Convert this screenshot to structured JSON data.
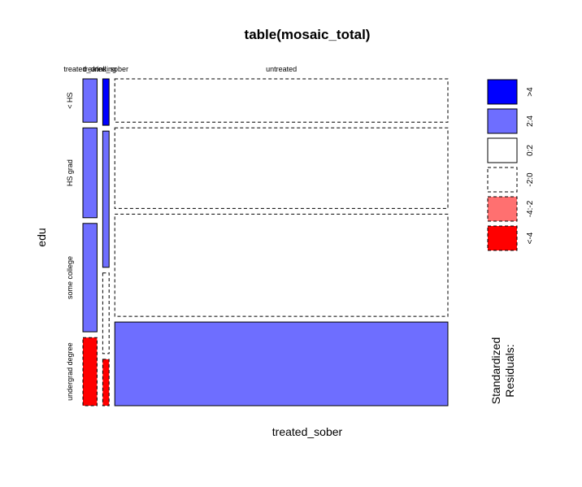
{
  "chart_data": {
    "type": "mosaic",
    "title": "table(mosaic_total)",
    "xlabel": "treated_sober",
    "ylabel": "edu",
    "columns": [
      "treated_drinking",
      "treated_sober",
      "untreated"
    ],
    "columns_display": [
      "treated_drinking",
      "treated_sober",
      "untreated"
    ],
    "column_fractions": [
      0.04,
      0.018,
      0.942
    ],
    "rows": [
      "< HS",
      "HS grad",
      "some college",
      "undergrad degree"
    ],
    "cells": [
      {
        "col": "treated_drinking",
        "row": "< HS",
        "fraction": 0.14,
        "residual_class": "2:4"
      },
      {
        "col": "treated_drinking",
        "row": "HS grad",
        "fraction": 0.29,
        "residual_class": "2:4"
      },
      {
        "col": "treated_drinking",
        "row": "some college",
        "fraction": 0.35,
        "residual_class": "2:4"
      },
      {
        "col": "treated_drinking",
        "row": "undergrad degree",
        "fraction": 0.22,
        "residual_class": "<-4"
      },
      {
        "col": "treated_sober",
        "row": "< HS",
        "fraction": 0.15,
        "residual_class": ">4"
      },
      {
        "col": "treated_sober",
        "row": "HS grad",
        "fraction": 0.44,
        "residual_class": "2:4"
      },
      {
        "col": "treated_sober",
        "row": "some college",
        "fraction": 0.26,
        "residual_class": "-2:0"
      },
      {
        "col": "treated_sober",
        "row": "undergrad degree",
        "fraction": 0.15,
        "residual_class": "<-4"
      },
      {
        "col": "untreated",
        "row": "< HS",
        "fraction": 0.14,
        "residual_class": "-2:0"
      },
      {
        "col": "untreated",
        "row": "HS grad",
        "fraction": 0.26,
        "residual_class": "-2:0"
      },
      {
        "col": "untreated",
        "row": "some college",
        "fraction": 0.33,
        "residual_class": "-2:0"
      },
      {
        "col": "untreated",
        "row": "undergrad degree",
        "fraction": 0.27,
        "residual_class": "2:4"
      }
    ],
    "legend": {
      "title": "Standardized\nResiduals:",
      "title_lines": [
        "Standardized",
        "Residuals:"
      ],
      "position": "right",
      "classes": [
        {
          "label": ">4",
          "color": "#0000ff",
          "border": "solid"
        },
        {
          "label": "2:4",
          "color": "#6e6eff",
          "border": "solid"
        },
        {
          "label": "0:2",
          "color": "#ffffff",
          "border": "solid"
        },
        {
          "label": "-2:0",
          "color": "#ffffff",
          "border": "dashed"
        },
        {
          "label": "-4:-2",
          "color": "#ff7070",
          "border": "dashed"
        },
        {
          "label": "<-4",
          "color": "#ff0000",
          "border": "dashed"
        }
      ]
    }
  }
}
